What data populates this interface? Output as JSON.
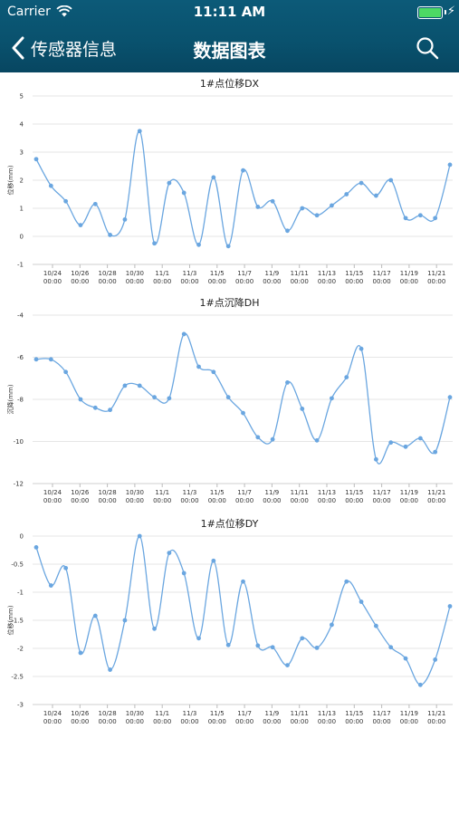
{
  "status_bar": {
    "carrier": "Carrier",
    "time": "11:11 AM"
  },
  "nav": {
    "back_label": "传感器信息",
    "title": "数据图表"
  },
  "colors": {
    "nav_bg": "#0a5472",
    "series": "#6aa6e0",
    "grid": "#e6e6e6"
  },
  "chart_data": [
    {
      "type": "line",
      "title": "1#点位移DX",
      "ylabel": "位移(mm)",
      "ylim": [
        -1,
        5
      ],
      "yticks": [
        "5",
        "4",
        "3",
        "2",
        "1",
        "0",
        "-1"
      ],
      "xticks": [
        [
          "10/24",
          "00:00"
        ],
        [
          "10/26",
          "00:00"
        ],
        [
          "10/28",
          "00:00"
        ],
        [
          "10/30",
          "00:00"
        ],
        [
          "11/1",
          "00:00"
        ],
        [
          "11/3",
          "00:00"
        ],
        [
          "11/5",
          "00:00"
        ],
        [
          "11/7",
          "00:00"
        ],
        [
          "11/9",
          "00:00"
        ],
        [
          "11/11",
          "00:00"
        ],
        [
          "11/13",
          "00:00"
        ],
        [
          "11/15",
          "00:00"
        ],
        [
          "11/17",
          "00:00"
        ],
        [
          "11/19",
          "00:00"
        ],
        [
          "11/21",
          "00:00"
        ]
      ],
      "values": [
        2.75,
        1.8,
        1.25,
        0.4,
        1.15,
        0.05,
        0.6,
        3.75,
        -0.25,
        1.9,
        1.55,
        -0.3,
        2.1,
        -0.35,
        2.35,
        1.05,
        1.25,
        0.2,
        1.0,
        0.75,
        1.1,
        1.5,
        1.9,
        1.45,
        2.0,
        0.65,
        0.75,
        0.65,
        2.55
      ]
    },
    {
      "type": "line",
      "title": "1#点沉降DH",
      "ylabel": "沉降(mm)",
      "ylim": [
        -12,
        -4
      ],
      "yticks": [
        "-4",
        "-6",
        "-8",
        "-10",
        "-12"
      ],
      "xticks": [
        [
          "10/24",
          "00:00"
        ],
        [
          "10/26",
          "00:00"
        ],
        [
          "10/28",
          "00:00"
        ],
        [
          "10/30",
          "00:00"
        ],
        [
          "11/1",
          "00:00"
        ],
        [
          "11/3",
          "00:00"
        ],
        [
          "11/5",
          "00:00"
        ],
        [
          "11/7",
          "00:00"
        ],
        [
          "11/9",
          "00:00"
        ],
        [
          "11/11",
          "00:00"
        ],
        [
          "11/13",
          "00:00"
        ],
        [
          "11/15",
          "00:00"
        ],
        [
          "11/17",
          "00:00"
        ],
        [
          "11/19",
          "00:00"
        ],
        [
          "11/21",
          "00:00"
        ]
      ],
      "values": [
        -6.1,
        -6.1,
        -6.7,
        -8.0,
        -8.4,
        -8.5,
        -7.35,
        -7.35,
        -7.9,
        -7.95,
        -4.9,
        -6.45,
        -6.7,
        -7.9,
        -8.65,
        -9.8,
        -9.9,
        -7.2,
        -8.45,
        -9.95,
        -7.95,
        -6.95,
        -5.6,
        -10.85,
        -10.05,
        -10.25,
        -9.85,
        -10.5,
        -7.9
      ]
    },
    {
      "type": "line",
      "title": "1#点位移DY",
      "ylabel": "位移(mm)",
      "ylim": [
        -3,
        0
      ],
      "yticks": [
        "0",
        "-0.5",
        "-1",
        "-1.5",
        "-2",
        "-2.5",
        "-3"
      ],
      "xticks": [
        [
          "10/24",
          "00:00"
        ],
        [
          "10/26",
          "00:00"
        ],
        [
          "10/28",
          "00:00"
        ],
        [
          "10/30",
          "00:00"
        ],
        [
          "11/1",
          "00:00"
        ],
        [
          "11/3",
          "00:00"
        ],
        [
          "11/5",
          "00:00"
        ],
        [
          "11/7",
          "00:00"
        ],
        [
          "11/9",
          "00:00"
        ],
        [
          "11/11",
          "00:00"
        ],
        [
          "11/13",
          "00:00"
        ],
        [
          "11/15",
          "00:00"
        ],
        [
          "11/17",
          "00:00"
        ],
        [
          "11/19",
          "00:00"
        ],
        [
          "11/21",
          "00:00"
        ]
      ],
      "values": [
        -0.2,
        -0.88,
        -0.57,
        -2.08,
        -1.42,
        -2.38,
        -1.5,
        0.0,
        -1.65,
        -0.3,
        -0.66,
        -1.82,
        -0.44,
        -1.94,
        -0.81,
        -1.95,
        -1.98,
        -2.3,
        -1.82,
        -1.99,
        -1.58,
        -0.81,
        -1.17,
        -1.6,
        -1.98,
        -2.18,
        -2.65,
        -2.2,
        -1.25
      ]
    }
  ]
}
